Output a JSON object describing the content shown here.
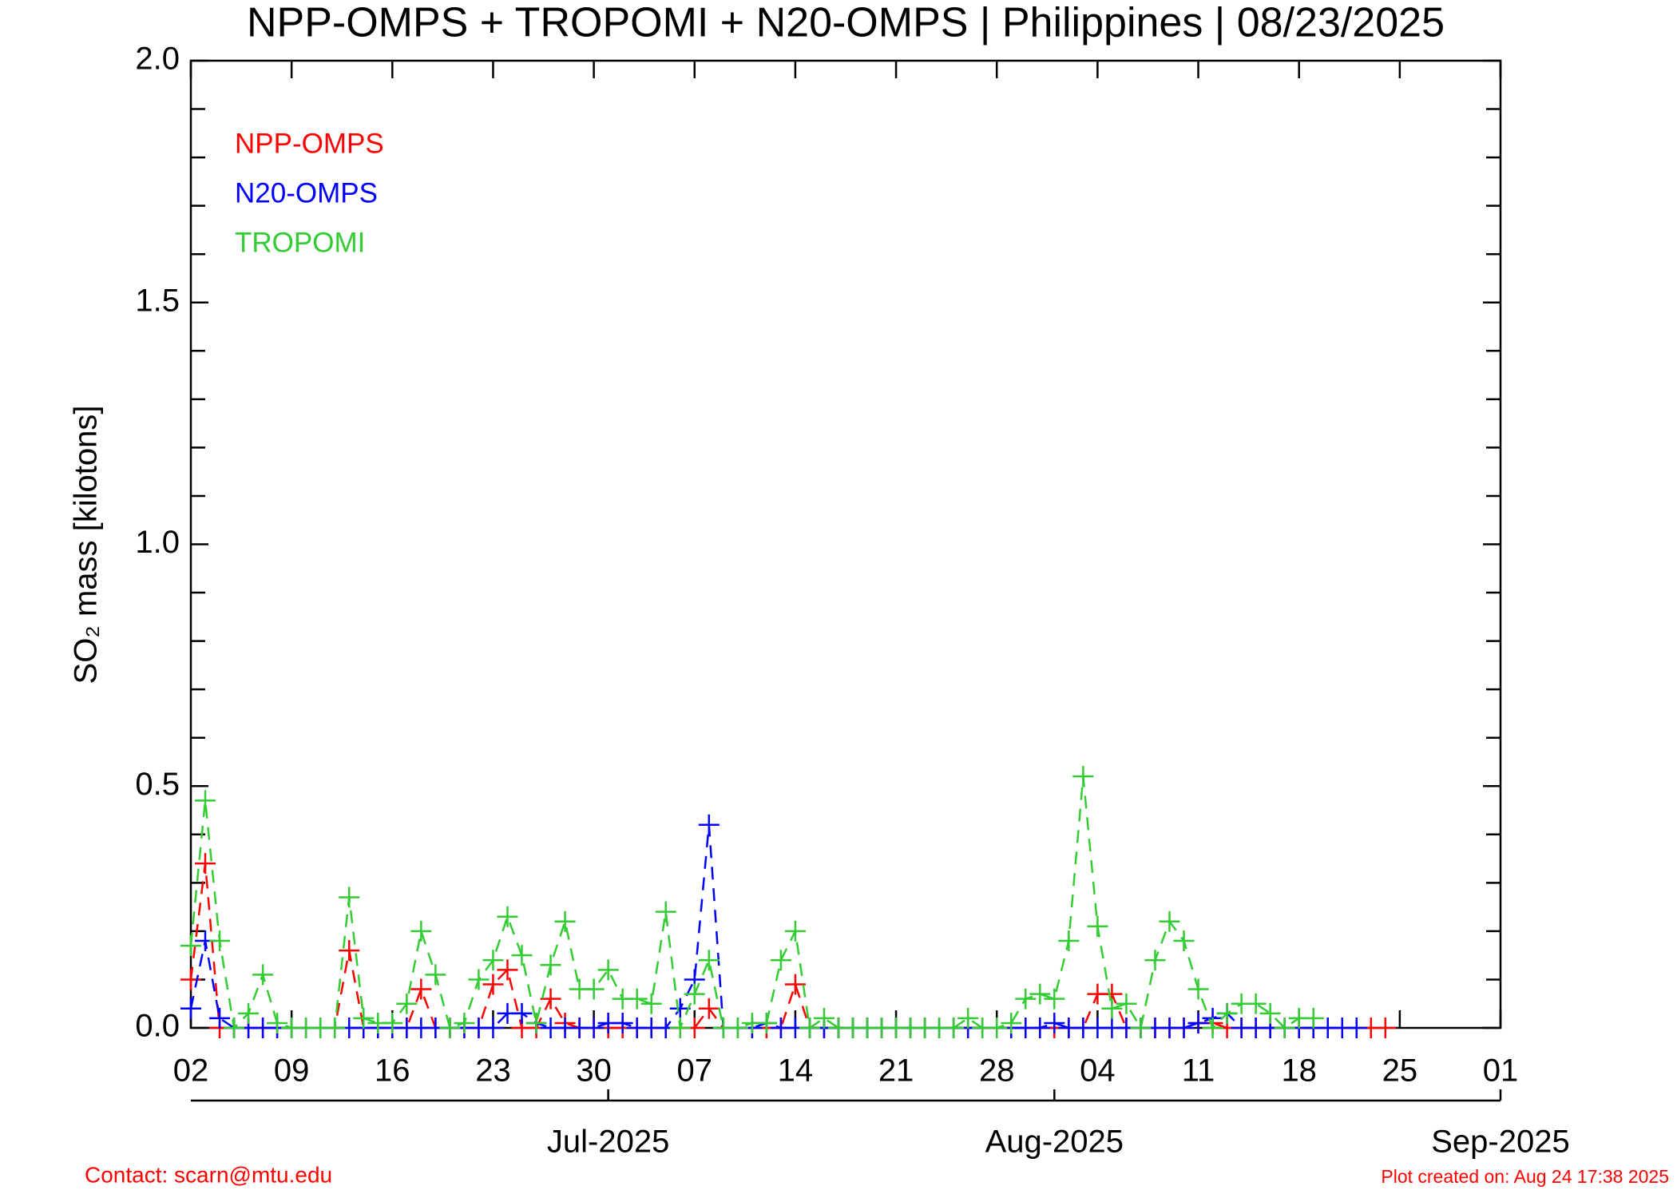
{
  "chart_data": {
    "type": "line",
    "title": "NPP-OMPS + TROPOMI + N20-OMPS | Philippines | 08/23/2025",
    "y_label": "SO₂ mass [kilotons]",
    "footer_left": "Contact: scarn@mtu.edu",
    "footer_right": "Plot created on: Aug 24 17:38 2025",
    "xlim": [
      "2025-06-02",
      "2025-09-01"
    ],
    "ylim": [
      0,
      2
    ],
    "yticks": [
      {
        "value": 0,
        "label": "0.0"
      },
      0.5,
      {
        "value": 1,
        "label": "1.0"
      },
      1.5,
      {
        "value": 2,
        "label": "2.0"
      }
    ],
    "yminorticks": [
      0.1,
      0.2,
      0.3,
      0.4,
      0.6,
      0.7,
      0.8,
      0.9,
      1.1,
      1.2,
      1.3,
      1.4,
      1.6,
      1.7,
      1.8,
      1.9
    ],
    "xticks": [
      {
        "value": "2025-06-02",
        "label": "02"
      },
      {
        "value": "2025-06-09",
        "label": "09"
      },
      {
        "value": "2025-06-16",
        "label": "16"
      },
      {
        "value": "2025-06-23",
        "label": "23"
      },
      {
        "value": "2025-06-30",
        "label": "30"
      },
      {
        "value": "2025-07-07",
        "label": "07"
      },
      {
        "value": "2025-07-14",
        "label": "14"
      },
      {
        "value": "2025-07-21",
        "label": "21"
      },
      {
        "value": "2025-07-28",
        "label": "28"
      },
      {
        "value": "2025-08-04",
        "label": "04"
      },
      {
        "value": "2025-08-11",
        "label": "11"
      },
      {
        "value": "2025-08-18",
        "label": "18"
      },
      {
        "value": "2025-08-25",
        "label": "25"
      },
      {
        "value": "2025-09-01",
        "label": "01"
      }
    ],
    "month_ticks": [
      {
        "value": "2025-07-01",
        "label": "Jul-2025"
      },
      {
        "value": "2025-08-01",
        "label": "Aug-2025"
      },
      {
        "value": "2025-09-01",
        "label": "Sep-2025"
      }
    ],
    "x": [
      "2025-06-02",
      "2025-06-03",
      "2025-06-04",
      "2025-06-05",
      "2025-06-06",
      "2025-06-07",
      "2025-06-08",
      "2025-06-09",
      "2025-06-10",
      "2025-06-11",
      "2025-06-12",
      "2025-06-13",
      "2025-06-14",
      "2025-06-15",
      "2025-06-16",
      "2025-06-17",
      "2025-06-18",
      "2025-06-19",
      "2025-06-20",
      "2025-06-21",
      "2025-06-22",
      "2025-06-23",
      "2025-06-24",
      "2025-06-25",
      "2025-06-26",
      "2025-06-27",
      "2025-06-28",
      "2025-06-29",
      "2025-06-30",
      "2025-07-01",
      "2025-07-02",
      "2025-07-03",
      "2025-07-04",
      "2025-07-05",
      "2025-07-06",
      "2025-07-07",
      "2025-07-08",
      "2025-07-09",
      "2025-07-10",
      "2025-07-11",
      "2025-07-12",
      "2025-07-13",
      "2025-07-14",
      "2025-07-15",
      "2025-07-16",
      "2025-07-17",
      "2025-07-18",
      "2025-07-19",
      "2025-07-20",
      "2025-07-21",
      "2025-07-22",
      "2025-07-23",
      "2025-07-24",
      "2025-07-25",
      "2025-07-26",
      "2025-07-27",
      "2025-07-28",
      "2025-07-29",
      "2025-07-30",
      "2025-07-31",
      "2025-08-01",
      "2025-08-02",
      "2025-08-03",
      "2025-08-04",
      "2025-08-05",
      "2025-08-06",
      "2025-08-07",
      "2025-08-08",
      "2025-08-09",
      "2025-08-10",
      "2025-08-11",
      "2025-08-12",
      "2025-08-13",
      "2025-08-14",
      "2025-08-15",
      "2025-08-16",
      "2025-08-17",
      "2025-08-18",
      "2025-08-19",
      "2025-08-20",
      "2025-08-21",
      "2025-08-22",
      "2025-08-23",
      "2025-08-24"
    ],
    "series": [
      {
        "name": "NPP-OMPS",
        "color": "#ff0000",
        "values": [
          0.1,
          0.34,
          0,
          0,
          0,
          0,
          0,
          0,
          0,
          0,
          0,
          0.16,
          0,
          0,
          0,
          0,
          0.08,
          0,
          0,
          0,
          0,
          0.09,
          0.12,
          0,
          0,
          0.06,
          0.01,
          0,
          0,
          0,
          0,
          0,
          0,
          0,
          0,
          0,
          0.04,
          0,
          0,
          0,
          0,
          0,
          0.09,
          0,
          0,
          0,
          0,
          0,
          0,
          0,
          0,
          0,
          0,
          0,
          0,
          0,
          0,
          0,
          0,
          0,
          0,
          0,
          0,
          0.07,
          0.07,
          0,
          0,
          0,
          0,
          0,
          0.01,
          0.01,
          0,
          0,
          0,
          0,
          0,
          0,
          0,
          0,
          0,
          0,
          0,
          0
        ]
      },
      {
        "name": "N20-OMPS",
        "color": "#0000ff",
        "values": [
          0.04,
          0.18,
          0.02,
          0,
          0,
          0,
          0,
          0,
          0,
          0,
          0,
          0,
          0,
          0,
          0,
          0,
          0,
          0,
          0,
          0,
          0,
          0,
          0.03,
          0.03,
          0.01,
          0,
          0,
          0,
          0,
          0.01,
          0.01,
          0,
          0,
          0,
          0.04,
          0.1,
          0.42,
          0,
          0,
          0,
          0.01,
          0,
          0,
          0,
          0,
          0,
          0,
          0,
          0,
          0,
          0,
          0,
          0,
          0,
          0,
          0,
          0,
          0,
          0,
          0,
          0.01,
          0,
          0,
          0,
          0,
          0,
          0,
          0,
          0,
          0,
          0.01,
          0.02,
          0.03,
          0,
          0,
          0,
          0,
          0,
          0,
          0,
          0,
          0,
          null,
          null
        ]
      },
      {
        "name": "TROPOMI",
        "color": "#33cc33",
        "values": [
          0.17,
          0.47,
          0.18,
          0,
          0.03,
          0.11,
          0.01,
          0,
          0,
          0,
          0,
          0.27,
          0.02,
          0.01,
          0.01,
          0.05,
          0.2,
          0.11,
          0,
          0.01,
          0.1,
          0.14,
          0.23,
          0.15,
          0.01,
          0.13,
          0.22,
          0.08,
          0.08,
          0.12,
          0.06,
          0.06,
          0.05,
          0.24,
          0,
          0.07,
          0.14,
          0,
          0,
          0.01,
          0.01,
          0.14,
          0.2,
          0,
          0.02,
          0,
          0,
          0,
          0,
          0,
          0,
          0,
          0,
          0,
          0.02,
          0,
          0,
          0.01,
          0.06,
          0.07,
          0.06,
          0.18,
          0.52,
          0.21,
          0.04,
          0.05,
          0,
          0.14,
          0.22,
          0.18,
          0.08,
          0,
          0.03,
          0.05,
          0.05,
          0.03,
          0,
          0.02,
          0.02,
          null,
          null,
          null,
          null,
          null
        ]
      }
    ]
  }
}
